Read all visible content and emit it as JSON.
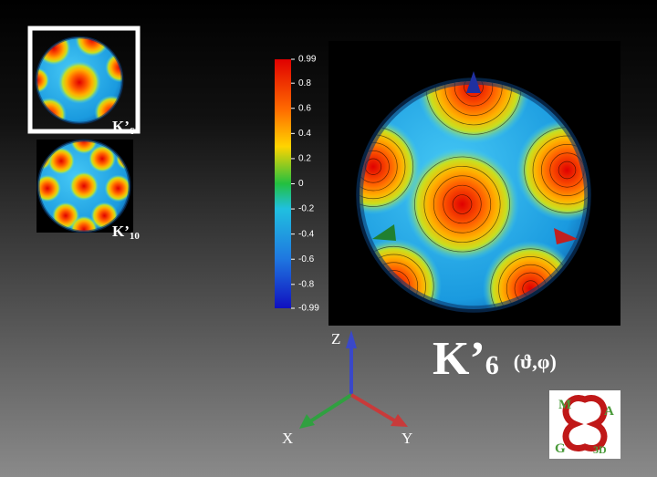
{
  "thumbnails": [
    {
      "label": "K’",
      "subscript": "6"
    },
    {
      "label": "K’",
      "subscript": "10"
    }
  ],
  "colorbar": {
    "range": [
      -0.99,
      0.99
    ],
    "ticks": [
      0.99,
      0.8,
      0.6,
      0.4,
      0.2,
      0,
      -0.2,
      -0.4,
      -0.6,
      -0.8,
      -0.99
    ]
  },
  "title": {
    "symbol": "K’",
    "subscript": "6",
    "arguments": "(ϑ,φ)"
  },
  "axes": {
    "z": "Z",
    "x": "X",
    "y": "Y"
  },
  "logo": {
    "letters": [
      "M",
      "A",
      "G",
      "3D"
    ]
  }
}
